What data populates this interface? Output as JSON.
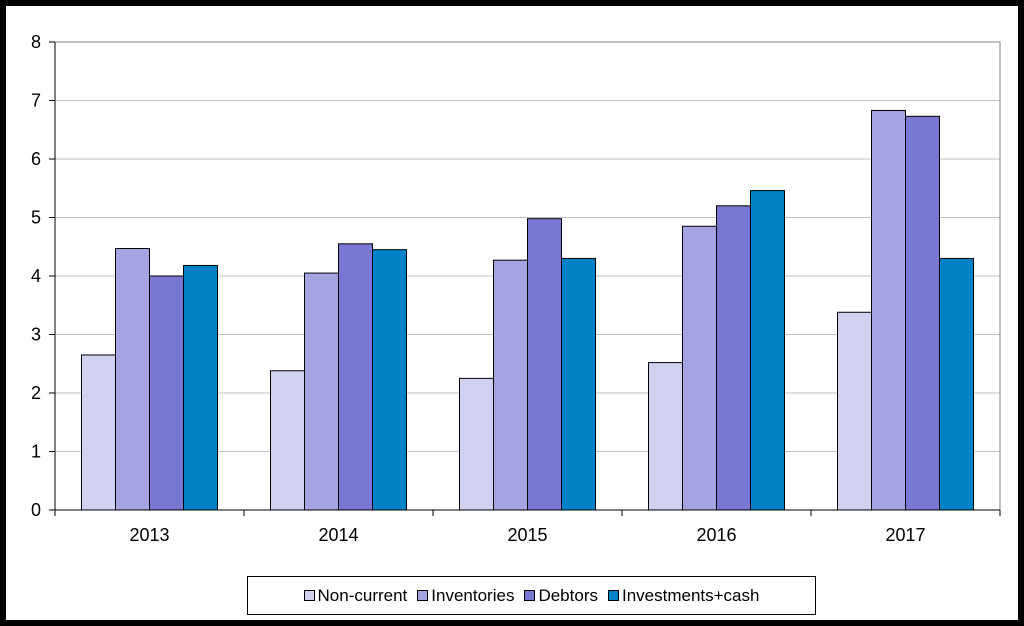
{
  "chart_data": {
    "type": "bar",
    "title": "",
    "xlabel": "",
    "ylabel": "",
    "categories": [
      "2013",
      "2014",
      "2015",
      "2016",
      "2017"
    ],
    "ylim": [
      0,
      8
    ],
    "yticks": [
      0,
      1,
      2,
      3,
      4,
      5,
      6,
      7,
      8
    ],
    "grid": "horizontal",
    "legend_position": "bottom",
    "series": [
      {
        "name": "Non-current",
        "color": "#d0d0f0",
        "values": [
          2.65,
          2.38,
          2.25,
          2.52,
          3.38
        ]
      },
      {
        "name": "Inventories",
        "color": "#a4a4e2",
        "values": [
          4.47,
          4.05,
          4.27,
          4.85,
          6.83
        ]
      },
      {
        "name": "Debtors",
        "color": "#7878d4",
        "values": [
          4.0,
          4.55,
          4.98,
          5.2,
          6.73
        ]
      },
      {
        "name": "Investments+cash",
        "color": "#0082c8",
        "values": [
          4.18,
          4.45,
          4.3,
          5.46,
          4.3
        ]
      }
    ]
  }
}
